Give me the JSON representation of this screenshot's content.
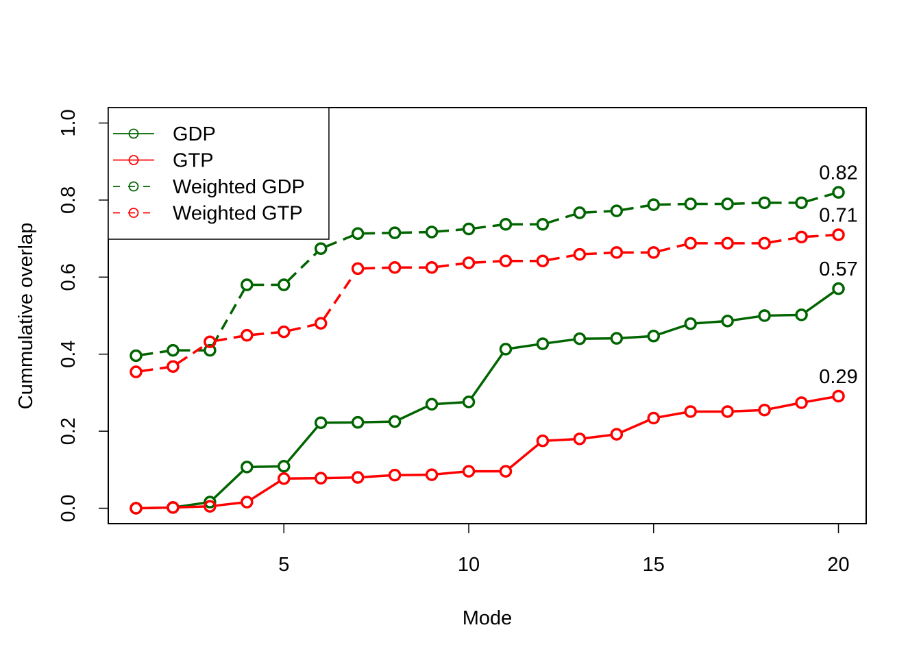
{
  "chart_data": {
    "type": "line",
    "xlabel": "Mode",
    "ylabel": "Cummulative overlap",
    "xlim": [
      0.25,
      20.75
    ],
    "ylim": [
      -0.04,
      1.04
    ],
    "x_ticks": [
      "5",
      "10",
      "15",
      "20"
    ],
    "y_ticks": [
      "0.0",
      "0.2",
      "0.4",
      "0.6",
      "0.8",
      "1.0"
    ],
    "x": [
      1,
      2,
      3,
      4,
      5,
      6,
      7,
      8,
      9,
      10,
      11,
      12,
      13,
      14,
      15,
      16,
      17,
      18,
      19,
      20
    ],
    "legend_position": "top-left",
    "grid": false,
    "series": [
      {
        "name": "GDP",
        "color": "#006400",
        "dashed": false,
        "marker": "open-circle",
        "values": [
          0.0,
          0.002,
          0.016,
          0.107,
          0.109,
          0.222,
          0.223,
          0.225,
          0.27,
          0.276,
          0.413,
          0.427,
          0.44,
          0.441,
          0.447,
          0.479,
          0.486,
          0.5,
          0.502,
          0.57
        ],
        "end_label": "0.57"
      },
      {
        "name": "GTP",
        "color": "#FF0000",
        "dashed": false,
        "marker": "open-circle",
        "values": [
          0.0,
          0.002,
          0.005,
          0.016,
          0.077,
          0.078,
          0.08,
          0.086,
          0.087,
          0.096,
          0.096,
          0.175,
          0.18,
          0.192,
          0.234,
          0.251,
          0.251,
          0.255,
          0.274,
          0.291
        ],
        "end_label": "0.29"
      },
      {
        "name": "Weighted GDP",
        "color": "#006400",
        "dashed": true,
        "marker": "open-circle",
        "values": [
          0.396,
          0.41,
          0.41,
          0.58,
          0.58,
          0.674,
          0.713,
          0.715,
          0.717,
          0.725,
          0.737,
          0.737,
          0.767,
          0.772,
          0.788,
          0.79,
          0.79,
          0.793,
          0.793,
          0.82
        ],
        "end_label": "0.82"
      },
      {
        "name": "Weighted GTP",
        "color": "#FF0000",
        "dashed": true,
        "marker": "open-circle",
        "values": [
          0.354,
          0.368,
          0.432,
          0.449,
          0.458,
          0.48,
          0.622,
          0.625,
          0.625,
          0.637,
          0.642,
          0.642,
          0.659,
          0.664,
          0.664,
          0.688,
          0.688,
          0.688,
          0.704,
          0.71
        ],
        "end_label": "0.71"
      }
    ]
  }
}
